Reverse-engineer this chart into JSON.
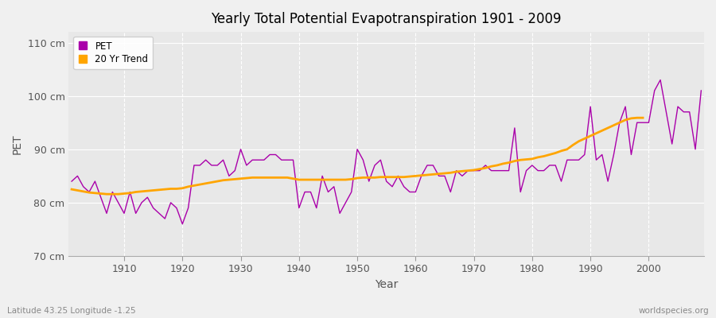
{
  "title": "Yearly Total Potential Evapotranspiration 1901 - 2009",
  "xlabel": "Year",
  "ylabel": "PET",
  "subtitle": "Latitude 43.25 Longitude -1.25",
  "watermark": "worldspecies.org",
  "ylim": [
    70,
    112
  ],
  "yticks": [
    70,
    80,
    90,
    100,
    110
  ],
  "ytick_labels": [
    "70 cm",
    "80 cm",
    "90 cm",
    "100 cm",
    "110 cm"
  ],
  "xticks": [
    1910,
    1920,
    1930,
    1940,
    1950,
    1960,
    1970,
    1980,
    1990,
    2000
  ],
  "pet_color": "#AA00AA",
  "trend_color": "#FFA500",
  "bg_color": "#F0F0F0",
  "plot_bg_color": "#E8E8E8",
  "grid_color": "#FFFFFF",
  "legend_labels": [
    "PET",
    "20 Yr Trend"
  ],
  "years": [
    1901,
    1902,
    1903,
    1904,
    1905,
    1906,
    1907,
    1908,
    1909,
    1910,
    1911,
    1912,
    1913,
    1914,
    1915,
    1916,
    1917,
    1918,
    1919,
    1920,
    1921,
    1922,
    1923,
    1924,
    1925,
    1926,
    1927,
    1928,
    1929,
    1930,
    1931,
    1932,
    1933,
    1934,
    1935,
    1936,
    1937,
    1938,
    1939,
    1940,
    1941,
    1942,
    1943,
    1944,
    1945,
    1946,
    1947,
    1948,
    1949,
    1950,
    1951,
    1952,
    1953,
    1954,
    1955,
    1956,
    1957,
    1958,
    1959,
    1960,
    1961,
    1962,
    1963,
    1964,
    1965,
    1966,
    1967,
    1968,
    1969,
    1970,
    1971,
    1972,
    1973,
    1974,
    1975,
    1976,
    1977,
    1978,
    1979,
    1980,
    1981,
    1982,
    1983,
    1984,
    1985,
    1986,
    1987,
    1988,
    1989,
    1990,
    1991,
    1992,
    1993,
    1994,
    1995,
    1996,
    1997,
    1998,
    1999,
    2000,
    2001,
    2002,
    2003,
    2004,
    2005,
    2006,
    2007,
    2008,
    2009
  ],
  "pet_values": [
    84,
    85,
    83,
    82,
    84,
    81,
    78,
    82,
    80,
    78,
    82,
    78,
    80,
    81,
    79,
    78,
    77,
    80,
    79,
    76,
    79,
    87,
    87,
    88,
    87,
    87,
    88,
    85,
    86,
    90,
    87,
    88,
    88,
    88,
    89,
    89,
    88,
    88,
    88,
    79,
    82,
    82,
    79,
    85,
    82,
    83,
    78,
    80,
    82,
    90,
    88,
    84,
    87,
    88,
    84,
    83,
    85,
    83,
    82,
    82,
    85,
    87,
    87,
    85,
    85,
    82,
    86,
    85,
    86,
    86,
    86,
    87,
    86,
    86,
    86,
    86,
    94,
    82,
    86,
    87,
    86,
    86,
    87,
    87,
    84,
    88,
    88,
    88,
    89,
    98,
    88,
    89,
    84,
    89,
    95,
    98,
    89,
    95,
    95,
    95,
    101,
    103,
    97,
    91,
    98,
    97,
    97,
    90,
    101
  ],
  "trend_values": [
    82.5,
    82.3,
    82.1,
    81.9,
    81.8,
    81.7,
    81.6,
    81.6,
    81.6,
    81.7,
    81.8,
    82.0,
    82.1,
    82.2,
    82.3,
    82.4,
    82.5,
    82.6,
    82.6,
    82.7,
    83.0,
    83.2,
    83.4,
    83.6,
    83.8,
    84.0,
    84.2,
    84.3,
    84.4,
    84.5,
    84.6,
    84.7,
    84.7,
    84.7,
    84.7,
    84.7,
    84.7,
    84.7,
    84.5,
    84.3,
    84.3,
    84.3,
    84.3,
    84.3,
    84.3,
    84.3,
    84.3,
    84.3,
    84.4,
    84.6,
    84.7,
    84.7,
    84.7,
    84.8,
    84.8,
    84.8,
    84.8,
    84.8,
    84.9,
    85.0,
    85.1,
    85.2,
    85.3,
    85.4,
    85.5,
    85.6,
    85.8,
    85.9,
    86.0,
    86.1,
    86.3,
    86.5,
    86.8,
    87.0,
    87.3,
    87.5,
    87.8,
    88.0,
    88.1,
    88.2,
    88.5,
    88.7,
    89.0,
    89.3,
    89.7,
    90.0,
    90.8,
    91.5,
    92.0,
    92.5,
    93.0,
    93.5,
    94.0,
    94.5,
    95.0,
    95.5,
    95.8,
    95.9,
    95.9,
    null,
    null,
    null,
    null,
    null,
    null,
    null,
    null,
    null,
    null
  ]
}
